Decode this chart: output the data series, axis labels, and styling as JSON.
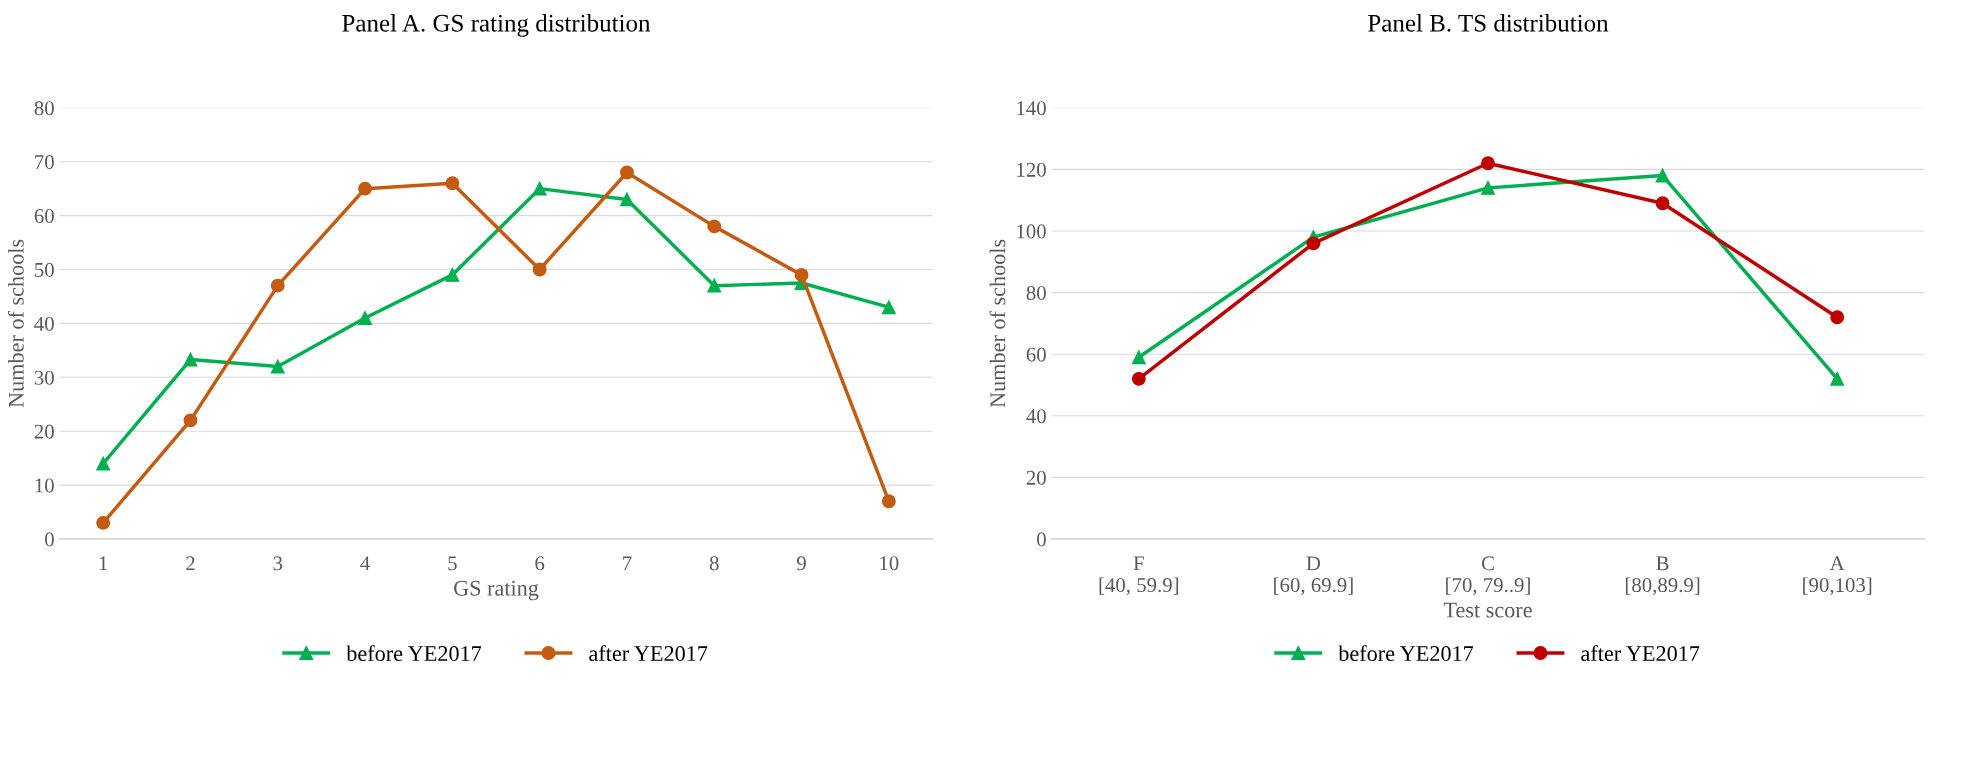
{
  "chart_data": [
    {
      "type": "line",
      "title": "Panel A. GS rating distribution",
      "xlabel": "GS rating",
      "ylabel": "Number of schools",
      "categories": [
        "1",
        "2",
        "3",
        "4",
        "5",
        "6",
        "7",
        "8",
        "9",
        "10"
      ],
      "ylim": [
        0,
        80
      ],
      "yticks": [
        0,
        10,
        20,
        30,
        40,
        50,
        60,
        70,
        80
      ],
      "grid": "y",
      "legend": "bottom",
      "line_style": "solid",
      "series": [
        {
          "name": "before YE2017",
          "color": "#00b050",
          "marker": "triangle",
          "values": [
            14,
            33.3,
            32,
            41,
            49,
            65,
            63,
            47,
            47.5,
            43
          ]
        },
        {
          "name": "after YE2017",
          "color": "#c55a11",
          "marker": "circle",
          "values": [
            3,
            22,
            47,
            65,
            66,
            50,
            68,
            58,
            49,
            7
          ]
        }
      ]
    },
    {
      "type": "line",
      "title": "Panel B. TS distribution",
      "xlabel": "Test score",
      "ylabel": "Number of schools",
      "categories": [
        "F\n[40, 59.9]",
        "D\n[60, 69.9]",
        "C\n[70, 79..9]",
        "B\n[80,89.9]",
        "A\n[90,103]"
      ],
      "ylim": [
        0,
        140
      ],
      "yticks": [
        0,
        20,
        40,
        60,
        80,
        100,
        120,
        140
      ],
      "grid": "y",
      "legend": "bottom",
      "line_style": "solid",
      "series": [
        {
          "name": "before YE2017",
          "color": "#00b050",
          "marker": "triangle",
          "values": [
            59,
            98,
            114,
            118,
            52
          ]
        },
        {
          "name": "after YE2017",
          "color": "#c00000",
          "marker": "circle",
          "values": [
            52,
            96,
            122,
            109,
            72
          ]
        }
      ]
    }
  ]
}
